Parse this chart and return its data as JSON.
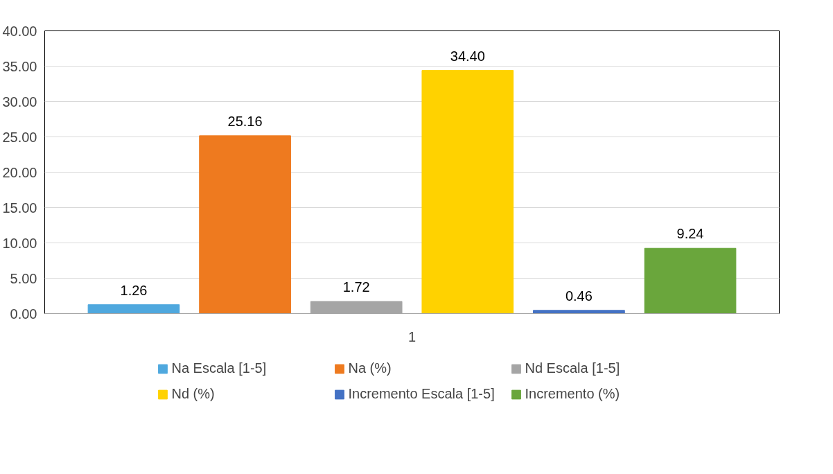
{
  "chart_data": {
    "type": "bar",
    "categories": [
      "1"
    ],
    "series": [
      {
        "name": "Na Escala [1-5]",
        "color": "#4fa8de",
        "values": [
          1.26
        ],
        "value_labels": [
          "1.26"
        ]
      },
      {
        "name": "Na (%)",
        "color": "#ee7a1f",
        "values": [
          25.16
        ],
        "value_labels": [
          "25.16"
        ]
      },
      {
        "name": "Nd Escala [1-5]",
        "color": "#a5a5a5",
        "values": [
          1.72
        ],
        "value_labels": [
          "1.72"
        ]
      },
      {
        "name": "Nd (%)",
        "color": "#ffd200",
        "values": [
          34.4
        ],
        "value_labels": [
          "34.40"
        ]
      },
      {
        "name": "Incremento Escala [1-5]",
        "color": "#4472c4",
        "values": [
          0.46
        ],
        "value_labels": [
          "0.46"
        ]
      },
      {
        "name": "Incremento (%)",
        "color": "#6aa63c",
        "values": [
          9.24
        ],
        "value_labels": [
          "9.24"
        ]
      }
    ],
    "ylim": [
      0,
      40
    ],
    "yticks": [
      {
        "value": 0,
        "label": "0.00"
      },
      {
        "value": 5,
        "label": "5.00"
      },
      {
        "value": 10,
        "label": "10.00"
      },
      {
        "value": 15,
        "label": "15.00"
      },
      {
        "value": 20,
        "label": "20.00"
      },
      {
        "value": 25,
        "label": "25.00"
      },
      {
        "value": 30,
        "label": "30.00"
      },
      {
        "value": 35,
        "label": "35.00"
      },
      {
        "value": 40,
        "label": "40.00"
      }
    ],
    "grid": "y",
    "legend": "bottom"
  }
}
